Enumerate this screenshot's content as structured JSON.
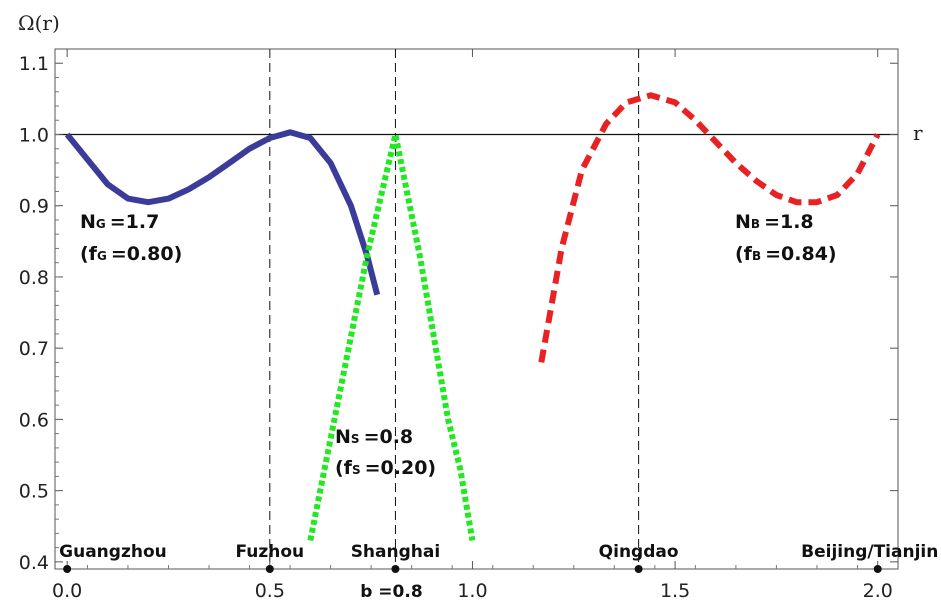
{
  "chart_data": {
    "type": "line",
    "xlabel": "r",
    "ylabel": "Ω(r)",
    "xlim": [
      -0.03,
      2.05
    ],
    "ylim": [
      0.39,
      1.12
    ],
    "x_ticks": [
      {
        "value": 0.0,
        "label": "0.0"
      },
      {
        "value": 0.5,
        "label": "0.5"
      },
      {
        "value": 1.0,
        "label": "1.0"
      },
      {
        "value": 1.5,
        "label": "1.5"
      },
      {
        "value": 2.0,
        "label": "2.0"
      }
    ],
    "y_ticks": [
      {
        "value": 0.4,
        "label": "0.4"
      },
      {
        "value": 0.5,
        "label": "0.5"
      },
      {
        "value": 0.6,
        "label": "0.6"
      },
      {
        "value": 0.7,
        "label": "0.7"
      },
      {
        "value": 0.8,
        "label": "0.8"
      },
      {
        "value": 0.9,
        "label": "0.9"
      },
      {
        "value": 1.0,
        "label": "1.0"
      },
      {
        "value": 1.1,
        "label": "1.1"
      }
    ],
    "reference_line_y": 1.0,
    "grid": false,
    "vertical_markers": [
      {
        "x": 0.0,
        "city": "Guangzhou",
        "dashed": false
      },
      {
        "x": 0.5,
        "city": "Fuzhou",
        "dashed": true
      },
      {
        "x": 0.81,
        "city": "Shanghai",
        "dashed": true
      },
      {
        "x": 1.41,
        "city": "Qingdao",
        "dashed": true
      },
      {
        "x": 2.0,
        "city": "Beijing/Tianjin",
        "dashed": false
      }
    ],
    "b_marker": {
      "x": 0.81,
      "label": "b =0.8"
    },
    "series": [
      {
        "id": "G",
        "color": "#3b3b9a",
        "style": "solid",
        "points": [
          [
            0.0,
            1.0
          ],
          [
            0.05,
            0.965
          ],
          [
            0.1,
            0.93
          ],
          [
            0.15,
            0.91
          ],
          [
            0.2,
            0.905
          ],
          [
            0.25,
            0.91
          ],
          [
            0.3,
            0.923
          ],
          [
            0.35,
            0.94
          ],
          [
            0.4,
            0.96
          ],
          [
            0.45,
            0.98
          ],
          [
            0.5,
            0.995
          ],
          [
            0.55,
            1.003
          ],
          [
            0.6,
            0.995
          ],
          [
            0.65,
            0.96
          ],
          [
            0.7,
            0.9
          ],
          [
            0.74,
            0.83
          ],
          [
            0.765,
            0.775
          ]
        ],
        "annotation": {
          "N_main": "N",
          "N_sub": "G",
          "N_value": "=1.7",
          "f_text": "(f",
          "f_sub": "G",
          "f_value": "=0.80)"
        }
      },
      {
        "id": "S",
        "color": "#22e822",
        "style": "dotted",
        "points": [
          [
            0.6,
            0.43
          ],
          [
            0.67,
            0.63
          ],
          [
            0.74,
            0.83
          ],
          [
            0.81,
            1.0
          ],
          [
            0.87,
            0.83
          ],
          [
            0.94,
            0.6
          ],
          [
            0.97,
            0.53
          ],
          [
            1.0,
            0.43
          ]
        ],
        "annotation": {
          "N_main": "N",
          "N_sub": "S",
          "N_value": "=0.8",
          "f_text": "(f",
          "f_sub": "S",
          "f_value": "=0.20)"
        }
      },
      {
        "id": "B",
        "color": "#e82222",
        "style": "dashed",
        "points": [
          [
            1.17,
            0.68
          ],
          [
            1.22,
            0.84
          ],
          [
            1.27,
            0.95
          ],
          [
            1.33,
            1.015
          ],
          [
            1.38,
            1.045
          ],
          [
            1.44,
            1.055
          ],
          [
            1.5,
            1.045
          ],
          [
            1.55,
            1.02
          ],
          [
            1.6,
            0.99
          ],
          [
            1.65,
            0.96
          ],
          [
            1.7,
            0.935
          ],
          [
            1.75,
            0.915
          ],
          [
            1.8,
            0.905
          ],
          [
            1.85,
            0.905
          ],
          [
            1.9,
            0.915
          ],
          [
            1.95,
            0.945
          ],
          [
            2.0,
            1.0
          ]
        ],
        "annotation": {
          "N_main": "N",
          "N_sub": "B",
          "N_value": "=1.8",
          "f_text": "(f",
          "f_sub": "B",
          "f_value": "=0.84)"
        }
      }
    ]
  }
}
